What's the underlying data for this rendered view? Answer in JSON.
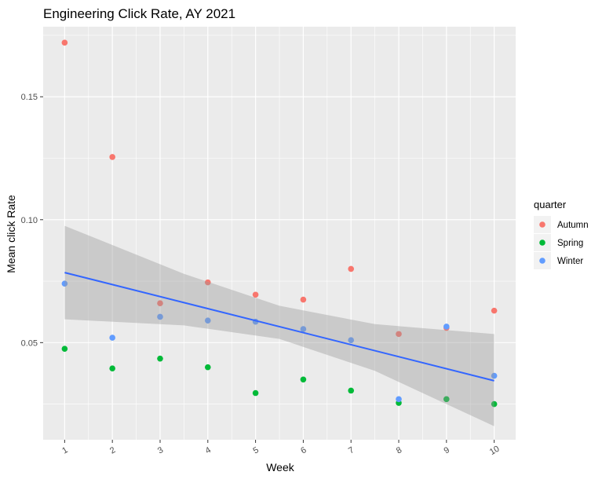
{
  "chart_data": {
    "type": "scatter",
    "title": "Engineering Click Rate, AY 2021",
    "xlabel": "Week",
    "ylabel": "Mean click Rate",
    "x_ticks": [
      1,
      2,
      3,
      4,
      5,
      6,
      7,
      8,
      9,
      10
    ],
    "y_ticks": [
      0.05,
      0.1,
      0.15
    ],
    "y_tick_labels": [
      "0.05",
      "0.10",
      "0.15"
    ],
    "xlim": [
      0.55,
      10.45
    ],
    "ylim": [
      0.0105,
      0.1785
    ],
    "grid": true,
    "legend": {
      "title": "quarter",
      "placement": "right",
      "entries": [
        "Autumn",
        "Spring",
        "Winter"
      ]
    },
    "colors": {
      "Autumn": "#F8766D",
      "Spring": "#00BA38",
      "Winter": "#619CFF",
      "trend": "#3366FF",
      "band": "#999999",
      "panel": "#EBEBEB"
    },
    "series": [
      {
        "name": "Autumn",
        "points": [
          [
            1,
            0.172
          ],
          [
            2,
            0.1255
          ],
          [
            3,
            0.066
          ],
          [
            4,
            0.0745
          ],
          [
            5,
            0.0695
          ],
          [
            6,
            0.0675
          ],
          [
            7,
            0.08
          ],
          [
            8,
            0.0535
          ],
          [
            9,
            0.056
          ],
          [
            10,
            0.063
          ]
        ]
      },
      {
        "name": "Spring",
        "points": [
          [
            1,
            0.0475
          ],
          [
            2,
            0.0395
          ],
          [
            3,
            0.0435
          ],
          [
            4,
            0.04
          ],
          [
            5,
            0.0295
          ],
          [
            6,
            0.035
          ],
          [
            7,
            0.0305
          ],
          [
            8,
            0.0255
          ],
          [
            9,
            0.027
          ],
          [
            10,
            0.025
          ]
        ]
      },
      {
        "name": "Winter",
        "points": [
          [
            1,
            0.074
          ],
          [
            2,
            0.052
          ],
          [
            3,
            0.0605
          ],
          [
            4,
            0.059
          ],
          [
            5,
            0.0585
          ],
          [
            6,
            0.0555
          ],
          [
            7,
            0.051
          ],
          [
            8,
            0.027
          ],
          [
            9,
            0.0565
          ],
          [
            10,
            0.0365
          ]
        ]
      }
    ],
    "trend": {
      "method": "linear",
      "start": [
        1,
        0.0785
      ],
      "end": [
        10,
        0.0345
      ],
      "band": [
        [
          1,
          0.0595,
          0.0975
        ],
        [
          3.5,
          0.057,
          0.078
        ],
        [
          5.5,
          0.0515,
          0.065
        ],
        [
          7.5,
          0.0385,
          0.0575
        ],
        [
          10,
          0.016,
          0.0535
        ]
      ]
    }
  }
}
